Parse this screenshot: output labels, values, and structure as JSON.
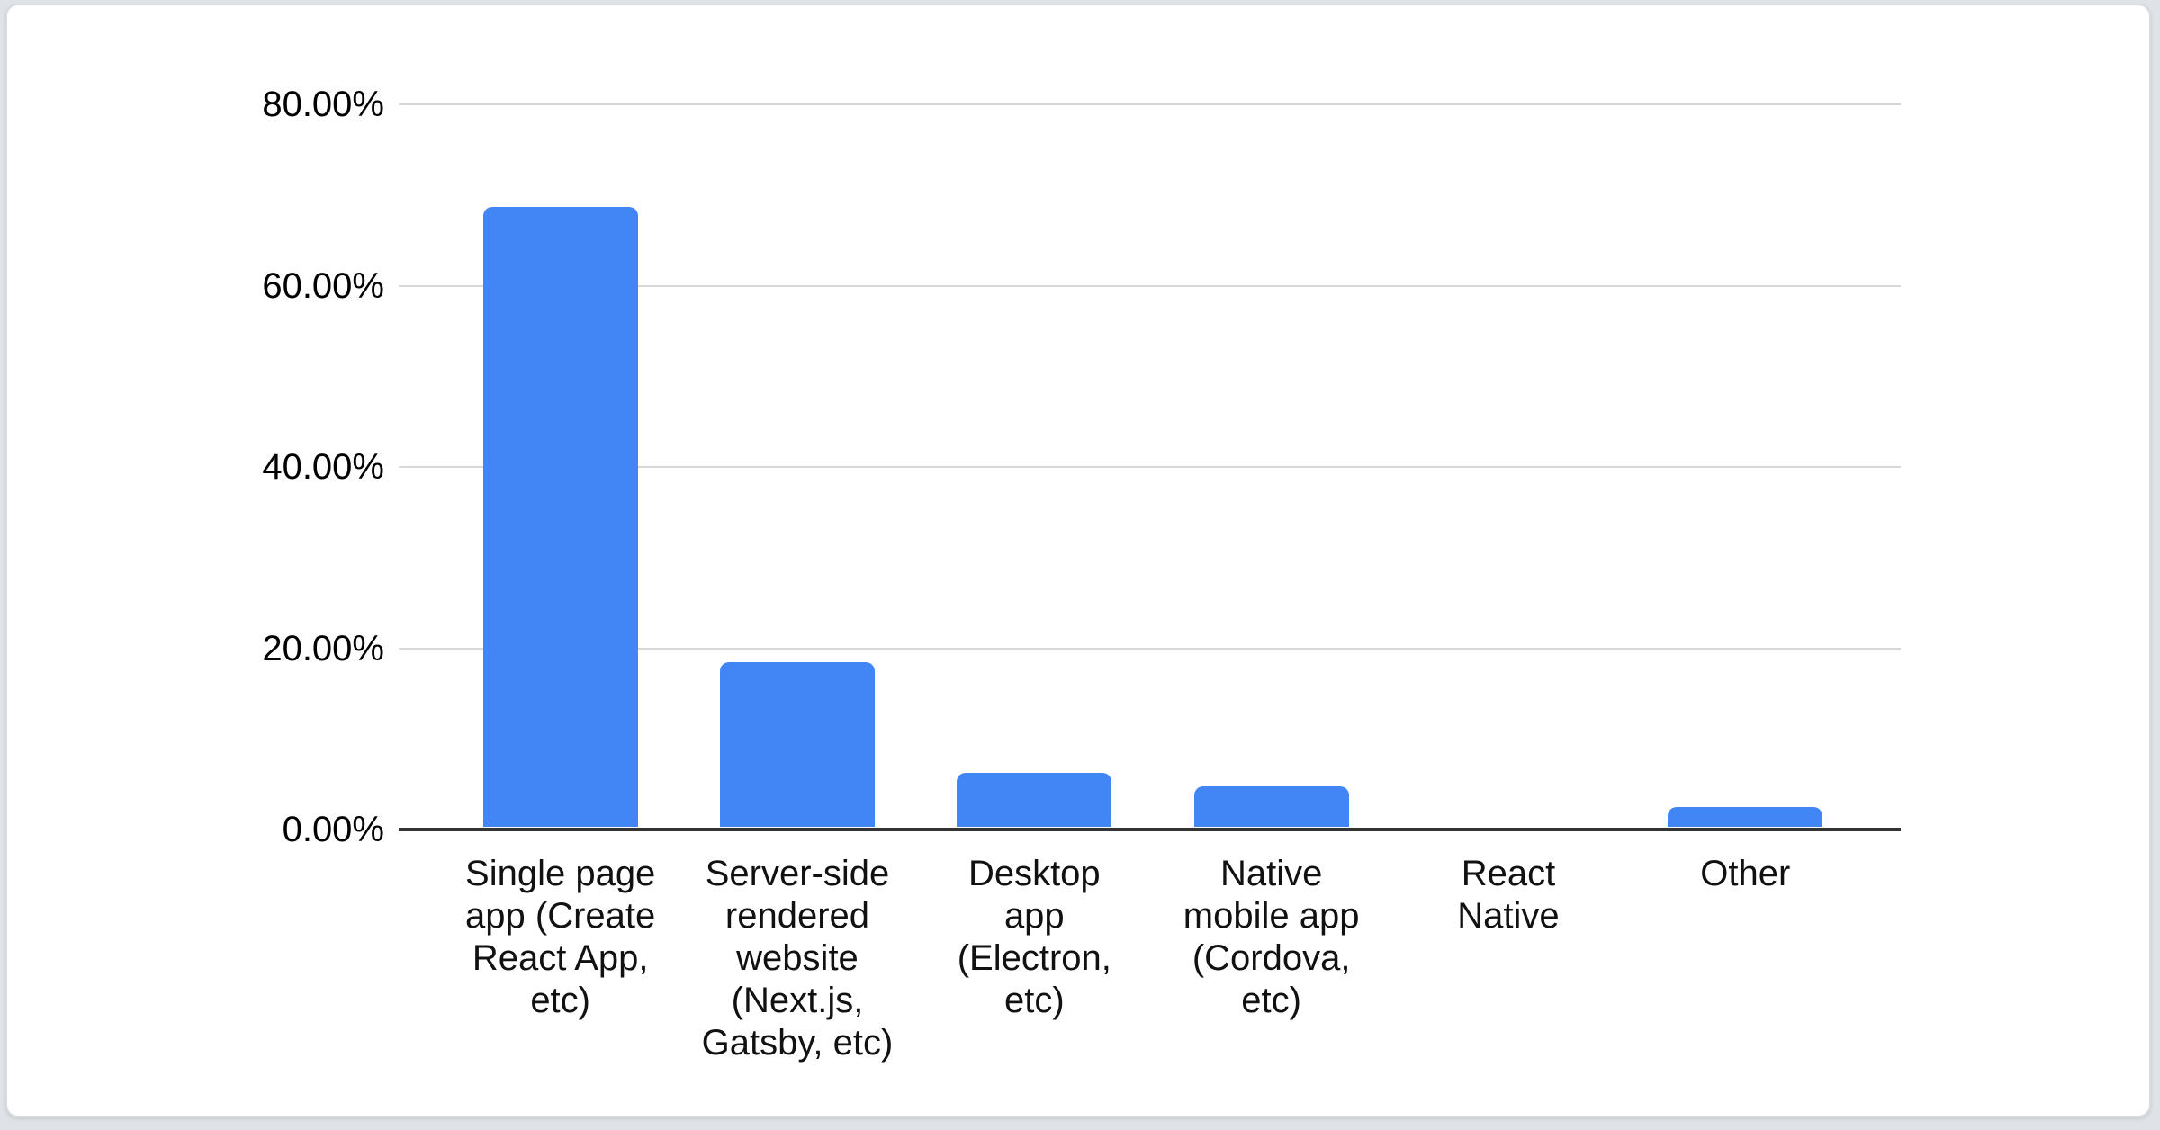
{
  "card": {
    "background": "#ffffff",
    "border_color": "#d8dbde"
  },
  "chart_data": {
    "type": "bar",
    "title": "",
    "categories": [
      "Single page app (Create React App, etc)",
      "Server-side rendered website (Next.js, Gatsby, etc)",
      "Desktop app (Electron, etc)",
      "Native mobile app (Cordova, etc)",
      "React Native",
      "Other"
    ],
    "category_display_lines": [
      "Single page\napp (Create\nReact App,\netc)",
      "Server-side\nrendered\nwebsite\n(Next.js,\nGatsby, etc)",
      "Desktop\napp\n(Electron,\netc)",
      "Native\nmobile app\n(Cordova,\netc)",
      "React\nNative",
      "Other"
    ],
    "values": [
      68.4,
      18.2,
      6.0,
      4.5,
      0.0,
      2.2
    ],
    "value_format": "percent",
    "xlabel": "",
    "ylabel": "",
    "ylim": [
      0,
      80
    ],
    "y_tick_values": [
      80,
      60,
      40,
      20,
      0
    ],
    "y_tick_labels": [
      "80.00%",
      "60.00%",
      "40.00%",
      "20.00%",
      "0.00%"
    ],
    "grid": true,
    "legend_position": "none",
    "bar_color": "#4285F4",
    "axis_line_color": "#333333",
    "gridline_color": "#d8d8d8",
    "tick_label_color": "#000000",
    "category_label_color": "#111111"
  }
}
